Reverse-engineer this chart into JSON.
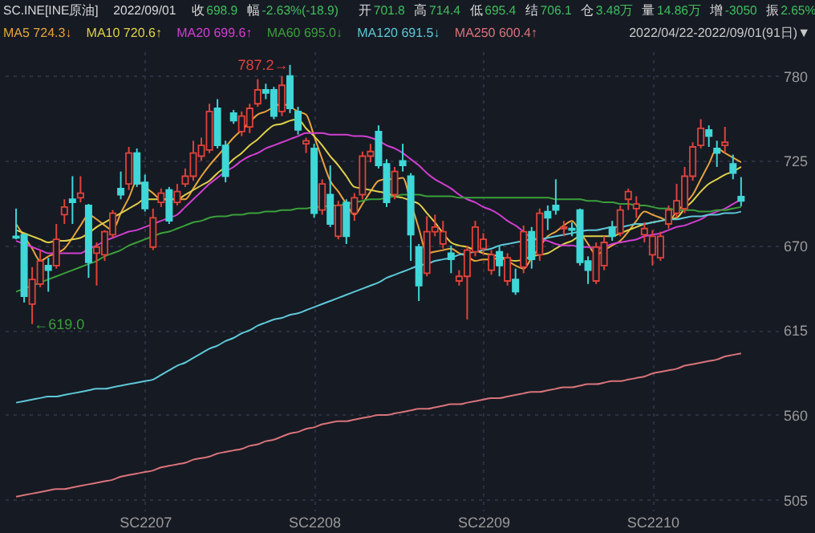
{
  "chart_data": {
    "type": "candlestick",
    "title": "SC.INE[INE原油]",
    "subtitle": "2022/09/01",
    "annotations": [
      "收 698.9",
      "幅 -2.63%(-18.9)",
      "开 701.8",
      "高 714.4",
      "低 695.4",
      "结 706.1",
      "仓 3.48万",
      "量 14.86万",
      "增 -3050",
      "振 2.65%",
      "2022/04/22-2022/09/01(91日)▼",
      "787.2→",
      "←619.0"
    ],
    "categories": [
      null,
      null,
      null,
      null,
      null,
      null,
      null,
      null,
      null,
      null,
      null,
      null,
      null,
      null,
      null,
      null,
      "SC2207",
      null,
      null,
      null,
      null,
      null,
      null,
      null,
      null,
      null,
      null,
      null,
      null,
      null,
      null,
      null,
      null,
      null,
      null,
      null,
      null,
      "SC2208",
      null,
      null,
      null,
      null,
      null,
      null,
      null,
      null,
      null,
      null,
      null,
      null,
      null,
      null,
      null,
      null,
      null,
      null,
      null,
      null,
      "SC2209",
      null,
      null,
      null,
      null,
      null,
      null,
      null,
      null,
      null,
      null,
      null,
      null,
      null,
      null,
      null,
      null,
      null,
      null,
      null,
      null,
      "SC2210",
      null,
      null,
      null,
      null,
      null,
      null,
      null,
      null,
      null,
      null,
      null
    ],
    "ohlc": [
      [
        676,
        694,
        674,
        675
      ],
      [
        677,
        677,
        633,
        637
      ],
      [
        632,
        656,
        619.0,
        648
      ],
      [
        645,
        667,
        643,
        660
      ],
      [
        657,
        662,
        640,
        654
      ],
      [
        657,
        684,
        655,
        674
      ],
      [
        690,
        700,
        684,
        695
      ],
      [
        700,
        715,
        684,
        698
      ],
      [
        701,
        715,
        698,
        704
      ],
      [
        696,
        697,
        649,
        659
      ],
      [
        665,
        672,
        644,
        669
      ],
      [
        664,
        680,
        660,
        679
      ],
      [
        677,
        693,
        675,
        691
      ],
      [
        707,
        718,
        700,
        703
      ],
      [
        710,
        734,
        706,
        730
      ],
      [
        730,
        733,
        708,
        710
      ],
      [
        711,
        716,
        692,
        694
      ],
      [
        669,
        694,
        667,
        688
      ],
      [
        698,
        707,
        695,
        704
      ],
      [
        706,
        708,
        684,
        686
      ],
      [
        698,
        710,
        696,
        705
      ],
      [
        710,
        720,
        708,
        715
      ],
      [
        715,
        738,
        712,
        730
      ],
      [
        728,
        740,
        725,
        735
      ],
      [
        732,
        762,
        730,
        757
      ],
      [
        759,
        765,
        733,
        735
      ],
      [
        735,
        738,
        711,
        715
      ],
      [
        756,
        758,
        749,
        751
      ],
      [
        744,
        757,
        741,
        754
      ],
      [
        747,
        762,
        743,
        759
      ],
      [
        762,
        778,
        760,
        771
      ],
      [
        771,
        775,
        765,
        769
      ],
      [
        771,
        773,
        752,
        754
      ],
      [
        757,
        780,
        754,
        774
      ],
      [
        780,
        787.2,
        756,
        759
      ],
      [
        757,
        760,
        742,
        745
      ],
      [
        736,
        740,
        730,
        738
      ],
      [
        733,
        736,
        688,
        691
      ],
      [
        693,
        713,
        690,
        710
      ],
      [
        703,
        722,
        682,
        684
      ],
      [
        676,
        699,
        674,
        696
      ],
      [
        698,
        700,
        671,
        676
      ],
      [
        691,
        704,
        686,
        701
      ],
      [
        703,
        731,
        700,
        728
      ],
      [
        728,
        736,
        724,
        731
      ],
      [
        744,
        748,
        720,
        722
      ],
      [
        723,
        726,
        695,
        698
      ],
      [
        703,
        721,
        700,
        718
      ],
      [
        725,
        736,
        718,
        722
      ],
      [
        715,
        717,
        660,
        677
      ],
      [
        669,
        671,
        634,
        644
      ],
      [
        652,
        689,
        650,
        679
      ],
      [
        679,
        690,
        676,
        682
      ],
      [
        671,
        686,
        668,
        679
      ],
      [
        665,
        670,
        652,
        661
      ],
      [
        647,
        654,
        644,
        650
      ],
      [
        650,
        670,
        622,
        667
      ],
      [
        666,
        686,
        663,
        682
      ],
      [
        668,
        678,
        664,
        674
      ],
      [
        654,
        667,
        651,
        664
      ],
      [
        666,
        670,
        650,
        657
      ],
      [
        647,
        665,
        644,
        662
      ],
      [
        648,
        655,
        638,
        640
      ],
      [
        656,
        683,
        652,
        679
      ],
      [
        679,
        682,
        655,
        661
      ],
      [
        664,
        694,
        660,
        691
      ],
      [
        692,
        696,
        680,
        688
      ],
      [
        696,
        713,
        690,
        693
      ],
      [
        681,
        686,
        676,
        682
      ],
      [
        681,
        685,
        676,
        680
      ],
      [
        693,
        694,
        657,
        659
      ],
      [
        660,
        663,
        645,
        654
      ],
      [
        647,
        672,
        645,
        669
      ],
      [
        657,
        676,
        654,
        672
      ],
      [
        682,
        686,
        673,
        676
      ],
      [
        678,
        696,
        676,
        693
      ],
      [
        700,
        707,
        693,
        705
      ],
      [
        694,
        702,
        688,
        697
      ],
      [
        677,
        685,
        672,
        681
      ],
      [
        664,
        680,
        657,
        676
      ],
      [
        662,
        679,
        660,
        676
      ],
      [
        684,
        696,
        681,
        693
      ],
      [
        691,
        710,
        688,
        699
      ],
      [
        694,
        721,
        691,
        715
      ],
      [
        715,
        737,
        712,
        734
      ],
      [
        735,
        752,
        733,
        746
      ],
      [
        745,
        748,
        734,
        741
      ],
      [
        733,
        738,
        721,
        730
      ],
      [
        735,
        747,
        730,
        737
      ],
      [
        723,
        729,
        713,
        717
      ],
      [
        701.8,
        714.4,
        695.4,
        698.9
      ]
    ],
    "colors": [
      "#3fd7d7",
      "#3fd7d7",
      "#e0433a",
      "#e0433a",
      "#3fd7d7",
      "#e0433a",
      "#e0433a",
      "#3fd7d7",
      "#e0433a",
      "#3fd7d7",
      "#e0433a",
      "#e0433a",
      "#e0433a",
      "#3fd7d7",
      "#e0433a",
      "#3fd7d7",
      "#3fd7d7",
      "#e0433a",
      "#e0433a",
      "#3fd7d7",
      "#e0433a",
      "#e0433a",
      "#e0433a",
      "#e0433a",
      "#e0433a",
      "#3fd7d7",
      "#3fd7d7",
      "#3fd7d7",
      "#e0433a",
      "#e0433a",
      "#e0433a",
      "#3fd7d7",
      "#3fd7d7",
      "#e0433a",
      "#3fd7d7",
      "#3fd7d7",
      "#e0433a",
      "#3fd7d7",
      "#e0433a",
      "#3fd7d7",
      "#e0433a",
      "#3fd7d7",
      "#e0433a",
      "#e0433a",
      "#e0433a",
      "#3fd7d7",
      "#3fd7d7",
      "#e0433a",
      "#3fd7d7",
      "#3fd7d7",
      "#3fd7d7",
      "#e0433a",
      "#e0433a",
      "#e0433a",
      "#3fd7d7",
      "#e0433a",
      "#e0433a",
      "#e0433a",
      "#e0433a",
      "#e0433a",
      "#3fd7d7",
      "#e0433a",
      "#3fd7d7",
      "#e0433a",
      "#3fd7d7",
      "#e0433a",
      "#3fd7d7",
      "#3fd7d7",
      "#e0433a",
      "#3fd7d7",
      "#3fd7d7",
      "#3fd7d7",
      "#e0433a",
      "#e0433a",
      "#3fd7d7",
      "#e0433a",
      "#e0433a",
      "#e0433a",
      "#e0433a",
      "#e0433a",
      "#e0433a",
      "#e0433a",
      "#e0433a",
      "#e0433a",
      "#e0433a",
      "#e0433a",
      "#3fd7d7",
      "#3fd7d7",
      "#e0433a",
      "#3fd7d7",
      "#3fd7d7"
    ],
    "series": [
      {
        "name": "MA5 724.3↓",
        "type": "line",
        "color": "#e8a33c",
        "values": [
          684,
          676,
          668,
          660,
          663,
          665,
          668,
          675,
          683,
          690,
          687,
          683,
          680,
          691,
          701,
          712,
          708,
          704,
          700,
          700,
          700,
          700,
          707,
          715,
          722,
          728,
          734,
          740,
          745,
          750,
          755,
          757,
          760,
          762,
          760,
          757,
          755,
          741,
          726,
          712,
          705,
          697,
          690,
          697,
          705,
          712,
          713,
          713,
          714,
          698,
          681,
          665,
          666,
          667,
          668,
          665,
          663,
          660,
          661,
          661,
          662,
          660,
          657,
          655,
          662,
          669,
          676,
          679,
          683,
          686,
          679,
          671,
          664,
          667,
          670,
          673,
          679,
          686,
          692,
          690,
          688,
          686,
          692,
          697,
          703,
          713,
          723,
          733,
          730,
          727,
          724
        ]
      },
      {
        "name": "MA10 720.6↑",
        "type": "line",
        "color": "#e0d04a",
        "values": [
          680,
          678,
          676,
          674,
          672,
          673,
          673,
          674,
          675,
          678,
          682,
          685,
          688,
          691,
          694,
          697,
          700,
          700,
          700,
          700,
          700,
          703,
          706,
          709,
          712,
          717,
          721,
          726,
          730,
          735,
          739,
          744,
          748,
          749,
          751,
          752,
          746,
          741,
          735,
          728,
          722,
          715,
          708,
          707,
          706,
          705,
          704,
          702,
          701,
          699,
          697,
          691,
          685,
          678,
          672,
          670,
          669,
          667,
          665,
          664,
          663,
          661,
          660,
          661,
          663,
          664,
          665,
          668,
          671,
          673,
          676,
          676,
          676,
          676,
          676,
          678,
          680,
          682,
          684,
          685,
          686,
          687,
          688,
          694,
          699,
          705,
          710,
          713,
          716,
          718,
          721
        ]
      },
      {
        "name": "MA20 699.6↑",
        "type": "line",
        "color": "#d23fd2",
        "values": [
          673,
          671,
          669,
          667,
          665,
          665,
          665,
          665,
          665,
          668,
          670,
          673,
          675,
          677,
          679,
          680,
          682,
          684,
          686,
          688,
          690,
          695,
          700,
          705,
          710,
          714,
          718,
          721,
          725,
          728,
          730,
          733,
          735,
          737,
          739,
          741,
          743,
          743,
          743,
          742,
          742,
          742,
          741,
          741,
          740,
          738,
          735,
          733,
          730,
          726,
          722,
          717,
          713,
          710,
          707,
          703,
          700,
          698,
          695,
          693,
          690,
          686,
          683,
          679,
          675,
          674,
          673,
          671,
          670,
          670,
          669,
          669,
          668,
          669,
          671,
          672,
          673,
          674,
          676,
          677,
          678,
          680,
          682,
          683,
          685,
          687,
          690,
          692,
          694,
          697,
          700
        ]
      },
      {
        "name": "MA60 695.0↓",
        "type": "line",
        "color": "#3aa03a",
        "values": [
          640,
          642,
          644,
          646,
          648,
          650,
          652,
          654,
          656,
          658,
          660,
          663,
          665,
          667,
          670,
          672,
          674,
          676,
          678,
          679,
          681,
          683,
          685,
          686,
          688,
          689,
          689,
          690,
          690,
          691,
          691,
          692,
          692,
          693,
          693,
          694,
          694,
          695,
          695,
          696,
          696,
          697,
          698,
          699,
          700,
          700,
          701,
          702,
          703,
          703,
          703,
          702,
          702,
          702,
          702,
          701,
          701,
          701,
          701,
          701,
          701,
          701,
          701,
          701,
          701,
          701,
          701,
          700,
          700,
          700,
          700,
          699,
          699,
          698,
          698,
          697,
          697,
          696,
          696,
          695,
          694,
          694,
          693,
          693,
          693,
          692,
          692,
          693,
          693,
          694,
          695
        ]
      },
      {
        "name": "MA120 691.5↓",
        "type": "line",
        "color": "#5ec8d8",
        "values": [
          568,
          569,
          570,
          571,
          572,
          572,
          573,
          574,
          575,
          576,
          577,
          577,
          578,
          579,
          580,
          581,
          582,
          583,
          586,
          589,
          592,
          594,
          597,
          600,
          603,
          605,
          608,
          610,
          613,
          615,
          618,
          620,
          622,
          623,
          625,
          626,
          628,
          630,
          632,
          634,
          636,
          638,
          640,
          642,
          644,
          646,
          649,
          651,
          653,
          655,
          657,
          658,
          660,
          661,
          662,
          664,
          665,
          666,
          667,
          668,
          670,
          671,
          672,
          673,
          674,
          674,
          675,
          676,
          677,
          678,
          679,
          680,
          680,
          681,
          682,
          682,
          683,
          684,
          684,
          685,
          686,
          687,
          687,
          688,
          689,
          689,
          690,
          690,
          691,
          691,
          692
        ]
      },
      {
        "name": "MA250 600.4↑",
        "type": "line",
        "color": "#d9747a",
        "values": [
          507,
          508,
          509,
          510,
          511,
          512,
          512,
          513,
          514,
          515,
          516,
          517,
          518,
          520,
          521,
          522,
          523,
          524,
          526,
          527,
          528,
          529,
          531,
          532,
          533,
          535,
          536,
          537,
          538,
          540,
          541,
          543,
          544,
          546,
          548,
          549,
          551,
          552,
          554,
          555,
          556,
          556,
          557,
          558,
          559,
          560,
          560,
          561,
          562,
          563,
          564,
          564,
          565,
          566,
          567,
          567,
          568,
          569,
          570,
          571,
          571,
          572,
          573,
          574,
          575,
          575,
          576,
          577,
          578,
          578,
          579,
          580,
          580,
          581,
          582,
          582,
          583,
          584,
          585,
          587,
          588,
          589,
          590,
          592,
          593,
          594,
          595,
          596,
          598,
          599,
          600
        ]
      }
    ],
    "ylim": [
      498,
      796
    ],
    "yticks": [
      505,
      560,
      615,
      670,
      725,
      780
    ],
    "grid": true,
    "legend": "top left"
  }
}
